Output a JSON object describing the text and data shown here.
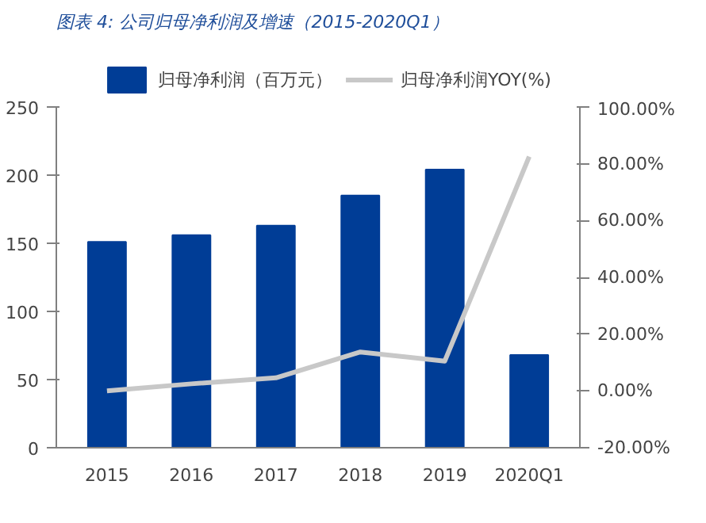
{
  "chart_data": {
    "type": "bar",
    "title": "图表 4:  公司归母净利润及增速（2015-2020Q1）",
    "categories": [
      "2015",
      "2016",
      "2017",
      "2018",
      "2019",
      "2020Q1"
    ],
    "series": [
      {
        "name": "归母净利润（百万元）",
        "color": "#003d96",
        "values": [
          151,
          156,
          163,
          185,
          204,
          68
        ]
      },
      {
        "name": "归母净利润YOY(%)",
        "type": "line",
        "axis": "y2",
        "color": "#c8c8c8",
        "values": [
          0,
          2.5,
          4.6,
          13.7,
          10.5,
          82.5
        ]
      }
    ],
    "ylim": [
      0,
      250
    ],
    "yticks": [
      0,
      50,
      100,
      150,
      200,
      250
    ],
    "y2lim": [
      -20,
      100
    ],
    "y2ticks": [
      {
        "value": -20,
        "label": "-20.00%"
      },
      {
        "value": 0,
        "label": "0.00%"
      },
      {
        "value": 20,
        "label": "20.00%"
      },
      {
        "value": 40,
        "label": "40.00%"
      },
      {
        "value": 60,
        "label": "60.00%"
      },
      {
        "value": 80,
        "label": "80.00%"
      },
      {
        "value": 100,
        "label": "100.00%"
      }
    ],
    "legend": "top",
    "grid": false
  }
}
